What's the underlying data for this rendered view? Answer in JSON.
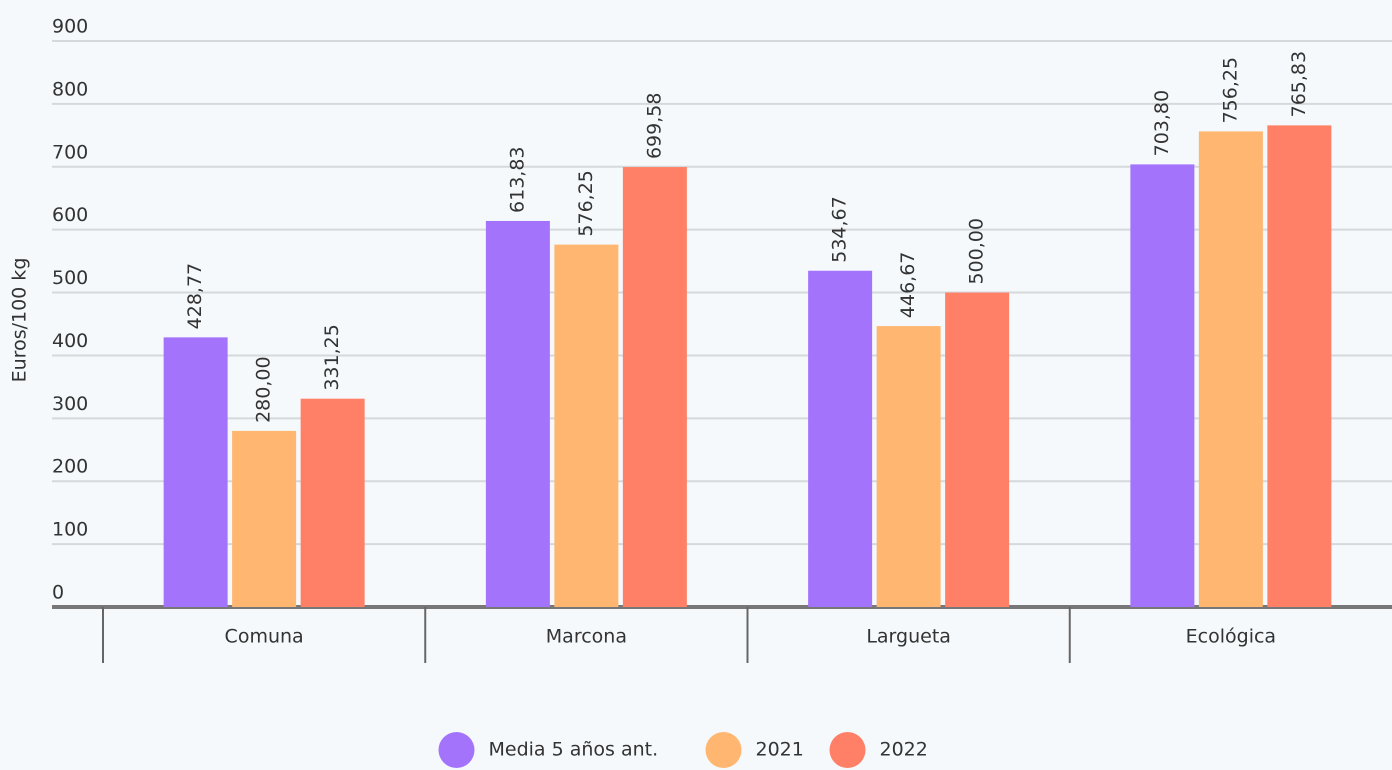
{
  "chart_data": {
    "type": "bar",
    "y_label": "Euros/100 kg",
    "categories": [
      "Comuna",
      "Marcona",
      "Largueta",
      "Ecológica"
    ],
    "series": [
      {
        "name": "Media 5 años ant.",
        "color": "#a374fb",
        "values": [
          428.77,
          613.83,
          534.67,
          703.8
        ],
        "value_labels": [
          "428,77",
          "613,83",
          "534,67",
          "703,80"
        ]
      },
      {
        "name": "2021",
        "color": "#ffb670",
        "values": [
          280.0,
          576.25,
          446.67,
          756.25
        ],
        "value_labels": [
          "280,00",
          "576,25",
          "446,67",
          "756,25"
        ]
      },
      {
        "name": "2022",
        "color": "#ff8066",
        "values": [
          331.25,
          699.58,
          500.0,
          765.83
        ],
        "value_labels": [
          "331,25",
          "699,58",
          "500,00",
          "765,83"
        ]
      }
    ],
    "ylim": [
      0,
      900
    ],
    "yticks": [
      0,
      100,
      200,
      300,
      400,
      500,
      600,
      700,
      800,
      900
    ],
    "grid": true,
    "legend": "bottom"
  }
}
